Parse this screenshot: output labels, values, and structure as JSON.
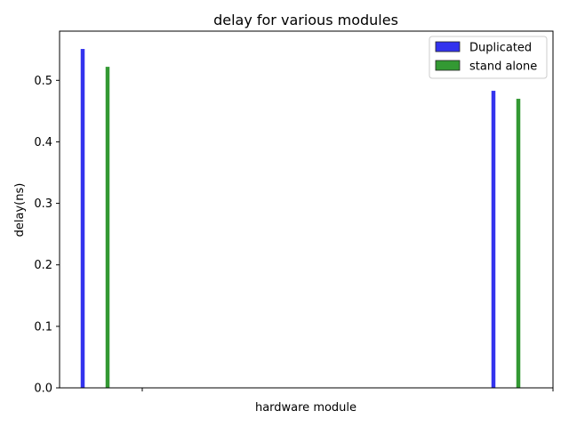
{
  "chart_data": {
    "type": "bar",
    "title": "delay for various modules",
    "xlabel": "hardware module",
    "ylabel": "delay(ns)",
    "ylim": [
      0,
      0.58
    ],
    "yticks": [
      "0.0",
      "0.1",
      "0.2",
      "0.3",
      "0.4",
      "0.5"
    ],
    "categories": [
      "",
      ""
    ],
    "series": [
      {
        "name": "Duplicated",
        "color": "#3333ee",
        "values": [
          0.551,
          0.483
        ]
      },
      {
        "name": "stand alone",
        "color": "#339933",
        "values": [
          0.522,
          0.47
        ]
      }
    ],
    "legend_position": "top-right",
    "grid": false
  }
}
